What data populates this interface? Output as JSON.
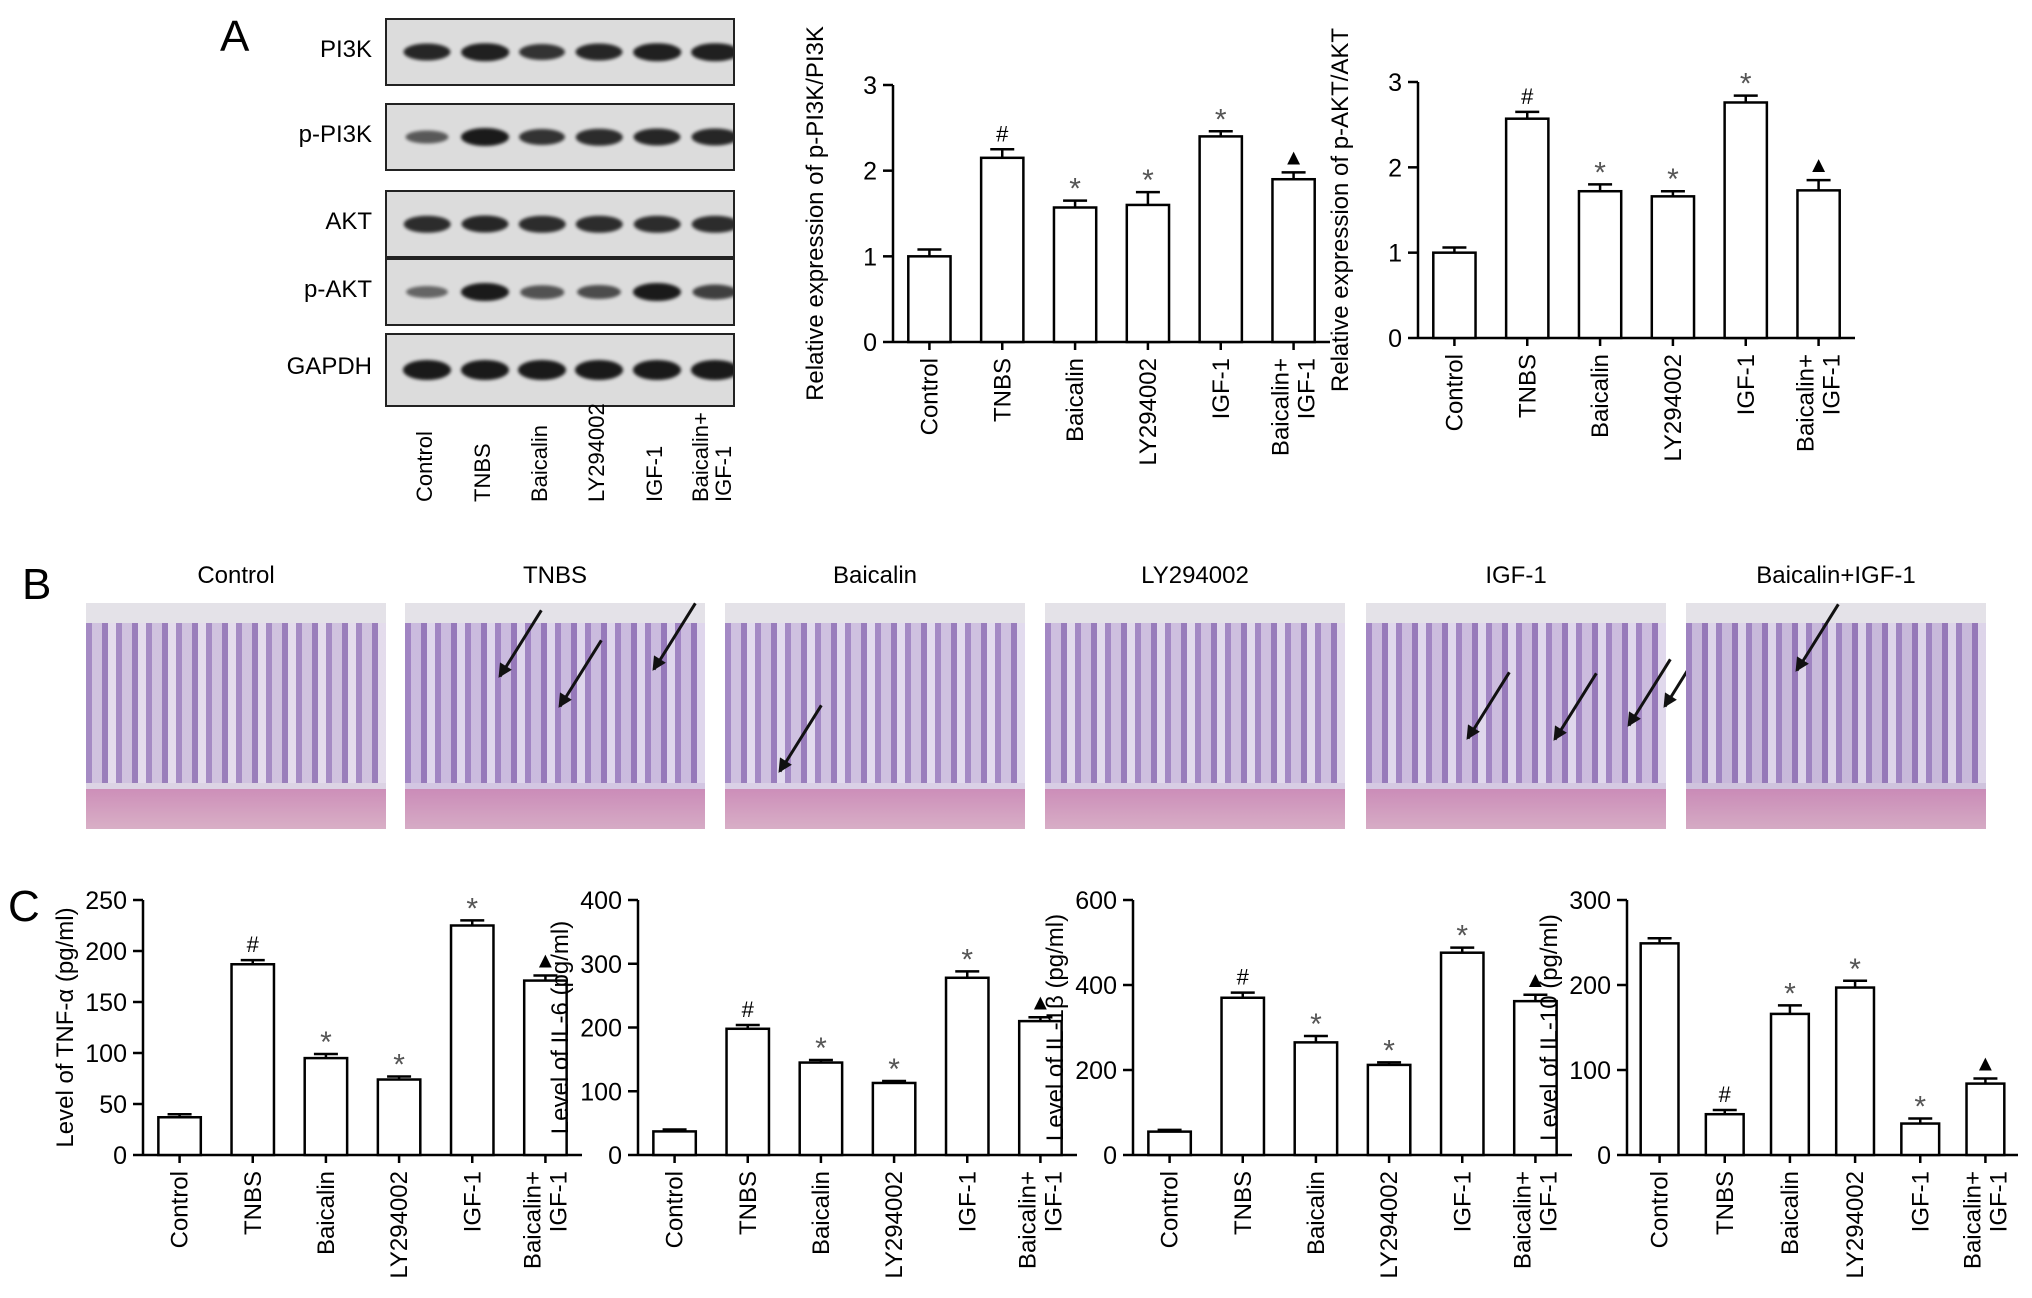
{
  "panels": {
    "A": "A",
    "B": "B",
    "C": "C"
  },
  "blot": {
    "proteins": [
      "PI3K",
      "p-PI3K",
      "AKT",
      "p-AKT",
      "GAPDH"
    ],
    "lanes": [
      "Control",
      "TNBS",
      "Baicalin",
      "LY294002",
      "IGF-1",
      "Baicalin+\nIGF-1"
    ]
  },
  "histology": {
    "titles": [
      "Control",
      "TNBS",
      "Baicalin",
      "LY294002",
      "IGF-1",
      "Baicalin+IGF-1"
    ]
  },
  "chart_data": [
    {
      "id": "p-pi3k",
      "type": "bar",
      "categories": [
        "Control",
        "TNBS",
        "Baicalin",
        "LY294002",
        "IGF-1",
        "Baicalin+\nIGF-1"
      ],
      "values": [
        1.0,
        2.15,
        1.57,
        1.6,
        2.4,
        1.9
      ],
      "errors": [
        0.08,
        0.1,
        0.08,
        0.15,
        0.06,
        0.08
      ],
      "marks": [
        "",
        "#",
        "*",
        "*",
        "*",
        "▲"
      ],
      "ylabel": "Relative expression of p-PI3K/PI3K",
      "ylim": [
        0,
        3
      ],
      "yticks": [
        0,
        1,
        2,
        3
      ]
    },
    {
      "id": "p-akt",
      "type": "bar",
      "categories": [
        "Control",
        "TNBS",
        "Baicalin",
        "LY294002",
        "IGF-1",
        "Baicalin+\nIGF-1"
      ],
      "values": [
        1.0,
        2.57,
        1.72,
        1.66,
        2.76,
        1.73
      ],
      "errors": [
        0.06,
        0.08,
        0.08,
        0.06,
        0.08,
        0.12
      ],
      "marks": [
        "",
        "#",
        "*",
        "*",
        "*",
        "▲"
      ],
      "ylabel": "Relative expression of p-AKT/AKT",
      "ylim": [
        0,
        3
      ],
      "yticks": [
        0,
        1,
        2,
        3
      ]
    },
    {
      "id": "tnf",
      "type": "bar",
      "categories": [
        "Control",
        "TNBS",
        "Baicalin",
        "LY294002",
        "IGF-1",
        "Baicalin+\nIGF-1"
      ],
      "values": [
        37,
        187,
        95,
        74,
        225,
        171
      ],
      "errors": [
        3,
        4,
        4,
        3,
        5,
        5
      ],
      "marks": [
        "",
        "#",
        "*",
        "*",
        "*",
        "▲"
      ],
      "ylabel": "Level of TNF-α (pg/ml)",
      "ylim": [
        0,
        250
      ],
      "yticks": [
        0,
        50,
        100,
        150,
        200,
        250
      ]
    },
    {
      "id": "il6",
      "type": "bar",
      "categories": [
        "Control",
        "TNBS",
        "Baicalin",
        "LY294002",
        "IGF-1",
        "Baicalin+\nIGF-1"
      ],
      "values": [
        37,
        198,
        145,
        113,
        278,
        210
      ],
      "errors": [
        3,
        6,
        4,
        3,
        10,
        6
      ],
      "marks": [
        "",
        "#",
        "*",
        "*",
        "*",
        "▲"
      ],
      "ylabel": "Level of IL-6 (pg/ml)",
      "ylim": [
        0,
        400
      ],
      "yticks": [
        0,
        100,
        200,
        300,
        400
      ]
    },
    {
      "id": "il1b",
      "type": "bar",
      "categories": [
        "Control",
        "TNBS",
        "Baicalin",
        "LY294002",
        "IGF-1",
        "Baicalin+\nIGF-1"
      ],
      "values": [
        55,
        370,
        265,
        212,
        476,
        362
      ],
      "errors": [
        4,
        12,
        15,
        6,
        12,
        15
      ],
      "marks": [
        "",
        "#",
        "*",
        "*",
        "*",
        "▲"
      ],
      "ylabel": "Level of IL-1β (pg/ml)",
      "ylim": [
        0,
        600
      ],
      "yticks": [
        0,
        200,
        400,
        600
      ]
    },
    {
      "id": "il10",
      "type": "bar",
      "categories": [
        "Control",
        "TNBS",
        "Baicalin",
        "LY294002",
        "IGF-1",
        "Baicalin+\nIGF-1"
      ],
      "values": [
        249,
        48,
        166,
        197,
        37,
        84
      ],
      "errors": [
        6,
        5,
        10,
        8,
        6,
        6
      ],
      "marks": [
        "",
        "#",
        "*",
        "*",
        "*",
        "▲"
      ],
      "ylabel": "Level of IL-10 (pg/ml)",
      "ylim": [
        0,
        300
      ],
      "yticks": [
        0,
        100,
        200,
        300
      ]
    }
  ]
}
